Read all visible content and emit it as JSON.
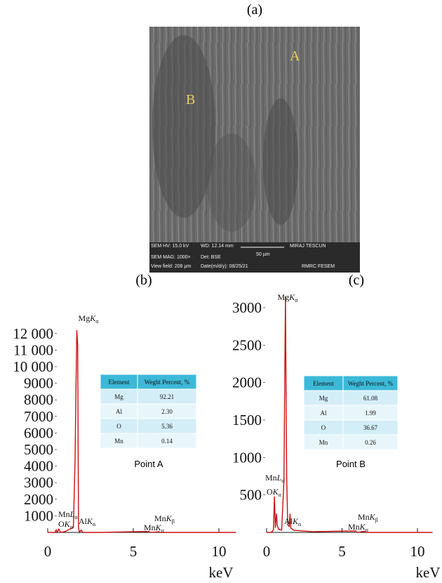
{
  "panel_a": {
    "label": "(a)",
    "markers": [
      "A",
      "B"
    ],
    "info": [
      "SEM HV: 15.0 kV",
      "WD: 12.14 mm",
      "MIRAJ TESCUN",
      "SEM MAG: 1000×",
      "Det: BSE",
      "50 μm",
      "View field: 208 μm",
      "Date(m/d/y): 08/25/21",
      "RMRC FESEM"
    ]
  },
  "chart_data": [
    {
      "type": "line",
      "title": "(b)",
      "xlabel": "keV",
      "xlim": [
        0,
        11
      ],
      "xticks": [
        0,
        5,
        10
      ],
      "ylim": [
        0,
        12500
      ],
      "yticks": [
        1000,
        2000,
        3000,
        4000,
        5000,
        6000,
        7000,
        8000,
        9000,
        {
          "value": 10000,
          "label": "10 000"
        },
        {
          "value": 11000,
          "label": "11 000"
        },
        {
          "value": 12000,
          "label": "12 000"
        }
      ],
      "series": [
        {
          "color": "#cc1111",
          "x": [
            0,
            0.4,
            0.5,
            0.55,
            0.65,
            0.75,
            1.0,
            1.5,
            1.6,
            1.65,
            1.7,
            1.75,
            1.8,
            1.85,
            1.95,
            2.05,
            2.2,
            3,
            5.9,
            6.0,
            6.5,
            6.6,
            7,
            11
          ],
          "values": [
            0,
            0,
            150,
            0,
            200,
            0,
            50,
            300,
            4500,
            8600,
            12200,
            11300,
            300,
            0,
            150,
            0,
            0,
            0,
            60,
            0,
            40,
            0,
            0,
            0
          ]
        }
      ],
      "annotations": [
        {
          "element": "Mg",
          "shell": "K",
          "sub": "α"
        },
        {
          "element": "Mn",
          "shell": "L",
          "sub": "α"
        },
        {
          "element": "O",
          "shell": "K",
          "sub": "α"
        },
        {
          "element": "Al",
          "shell": "K",
          "sub": "α"
        },
        {
          "element": "Mn",
          "shell": "K",
          "sub": "β"
        },
        {
          "element": "Mn",
          "shell": "K",
          "sub": "α"
        }
      ],
      "inset_table": {
        "header": [
          "Element",
          "Weght Percent, %"
        ],
        "rows": [
          [
            "Mg",
            "92.21"
          ],
          [
            "Al",
            "2.30"
          ],
          [
            "O",
            "5.36"
          ],
          [
            "Mn",
            "0.14"
          ]
        ],
        "caption": "Point A"
      }
    },
    {
      "type": "line",
      "title": "(c)",
      "xlabel": "keV",
      "xlim": [
        0,
        11
      ],
      "xticks": [
        0,
        5,
        10
      ],
      "ylim": [
        0,
        3300
      ],
      "yticks": [
        500,
        1000,
        1500,
        2000,
        2500,
        3000
      ],
      "series": [
        {
          "color": "#cc1111",
          "x": [
            0,
            0.3,
            0.45,
            0.52,
            0.58,
            0.65,
            0.7,
            0.8,
            1.0,
            1.15,
            1.2,
            1.25,
            1.3,
            1.33,
            1.4,
            1.5,
            1.55,
            1.6,
            1.8,
            3,
            5.9,
            6.0,
            6.5,
            6.6,
            11
          ],
          "values": [
            0,
            0,
            30,
            480,
            60,
            250,
            100,
            40,
            30,
            700,
            2000,
            3150,
            1600,
            750,
            100,
            80,
            250,
            60,
            30,
            10,
            20,
            0,
            15,
            0,
            0
          ]
        }
      ],
      "annotations": [
        {
          "element": "Mg",
          "shell": "K",
          "sub": "α"
        },
        {
          "element": "Mn",
          "shell": "L",
          "sub": "α"
        },
        {
          "element": "O",
          "shell": "K",
          "sub": "α"
        },
        {
          "element": "Al",
          "shell": "K",
          "sub": "α"
        },
        {
          "element": "Mn",
          "shell": "K",
          "sub": "β"
        },
        {
          "element": "Mn",
          "shell": "K",
          "sub": "α"
        }
      ],
      "inset_table": {
        "header": [
          "Element",
          "Weght Percent, %"
        ],
        "rows": [
          [
            "Mg",
            "61.08"
          ],
          [
            "Al",
            "1.99"
          ],
          [
            "O",
            "36.67"
          ],
          [
            "Mn",
            "0.26"
          ]
        ],
        "caption": "Point B"
      }
    }
  ]
}
